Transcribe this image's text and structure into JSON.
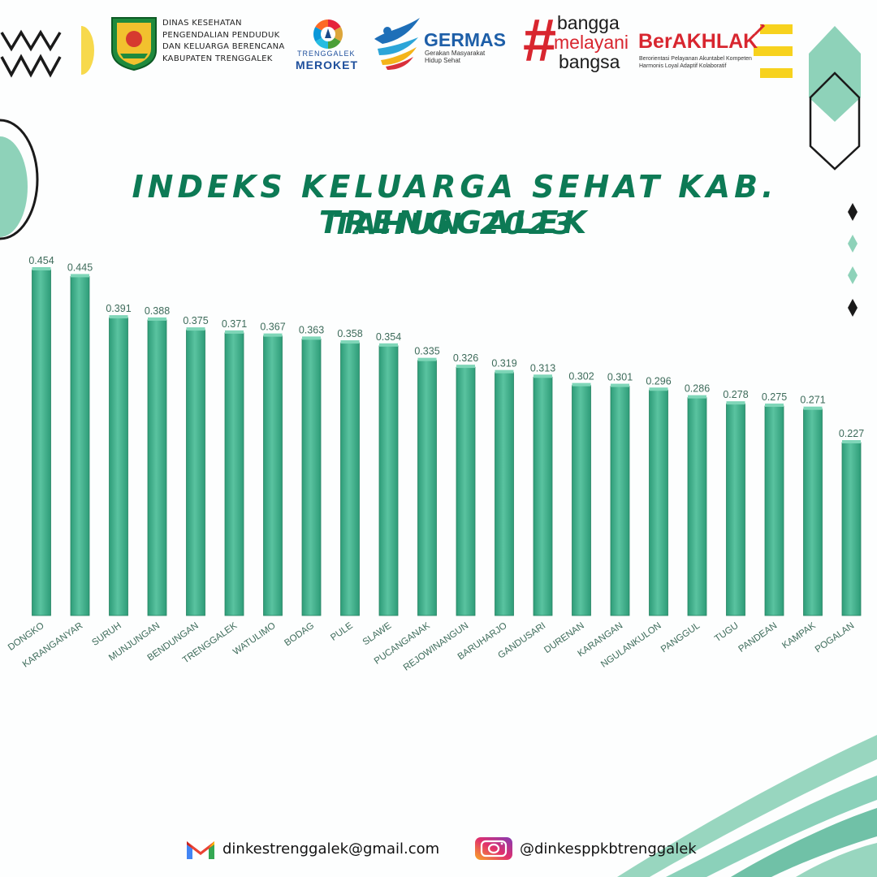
{
  "header": {
    "agency_lines": [
      "DINAS KESEHATAN",
      "PENGENDALIAN  PENDUDUK",
      "DAN KELUARGA  BERENCANA",
      "KABUPATEN  TRENGGALEK"
    ],
    "logos": {
      "trenggalek_l1": "TRENGGALEK",
      "trenggalek_l2": "MEROKET",
      "germas_title": "GERMAS",
      "germas_sub1": "Gerakan Masyarakat",
      "germas_sub2": "Hidup Sehat",
      "bangga_hash": "#",
      "bangga_l1": "bangga",
      "bangga_l2": "melayani",
      "bangga_l3": "bangsa",
      "berakhlak_title": "BerAKHLAK",
      "berakhlak_sub1": "Berorientasi Pelayanan Akuntabel Kompeten",
      "berakhlak_sub2": "Harmonis Loyal Adaptif Kolaboratif"
    }
  },
  "chart_data": {
    "type": "bar",
    "title": "INDEKS KELUARGA SEHAT KAB. TRENGGALEK",
    "subtitle": "TAHUN 2023",
    "categories": [
      "DONGKO",
      "KARANGANYAR",
      "SURUH",
      "MUNJUNGAN",
      "BENDUNGAN",
      "TRENGGALEK",
      "WATULIMO",
      "BODAG",
      "PULE",
      "SLAWE",
      "PUCANGANAK",
      "REJOWINANGUN",
      "BARUHARJO",
      "GANDUSARI",
      "DURENAN",
      "KARANGAN",
      "NGULANKULON",
      "PANGGUL",
      "TUGU",
      "PANDEAN",
      "KAMPAK",
      "POGALAN"
    ],
    "values": [
      0.454,
      0.445,
      0.391,
      0.388,
      0.375,
      0.371,
      0.367,
      0.363,
      0.358,
      0.354,
      0.335,
      0.326,
      0.319,
      0.313,
      0.302,
      0.301,
      0.296,
      0.286,
      0.278,
      0.275,
      0.271,
      0.227
    ],
    "value_labels": [
      "0.454",
      "0.445",
      "0.391",
      "0.388",
      "0.375",
      "0.371",
      "0.367",
      "0.363",
      "0.358",
      "0.354",
      "0.335",
      "0.326",
      "0.319",
      "0.313",
      "0.302",
      "0.301",
      "0.296",
      "0.286",
      "0.278",
      "0.275",
      "0.271",
      "0.227"
    ],
    "ylim": [
      0,
      0.454
    ],
    "grid": false,
    "legend": "none",
    "bar_color": "#4cb894"
  },
  "footer": {
    "email": "dinkestrenggalek@gmail.com",
    "instagram": "@dinkesppkbtrenggalek"
  }
}
